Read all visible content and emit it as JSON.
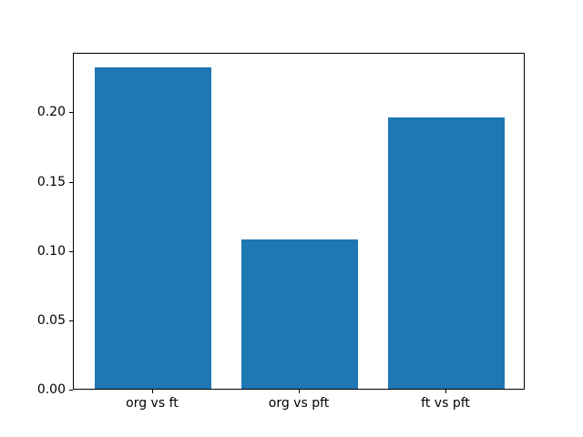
{
  "chart_data": {
    "type": "bar",
    "title": "",
    "xlabel": "",
    "ylabel": "",
    "categories": [
      "org vs ft",
      "org vs pft",
      "ft vs pft"
    ],
    "values": [
      0.232,
      0.108,
      0.196
    ],
    "yticks": [
      0.0,
      0.05,
      0.1,
      0.15,
      0.2
    ],
    "ytick_labels": [
      "0.00",
      "0.05",
      "0.10",
      "0.15",
      "0.20"
    ],
    "ylim": [
      0,
      0.243
    ],
    "xlim": [
      -0.54,
      2.54
    ],
    "bar_width": 0.8,
    "bar_color": "#1f77b4",
    "spine_color": "#000000",
    "background_color": "#ffffff",
    "grid": false,
    "legend": "none"
  }
}
